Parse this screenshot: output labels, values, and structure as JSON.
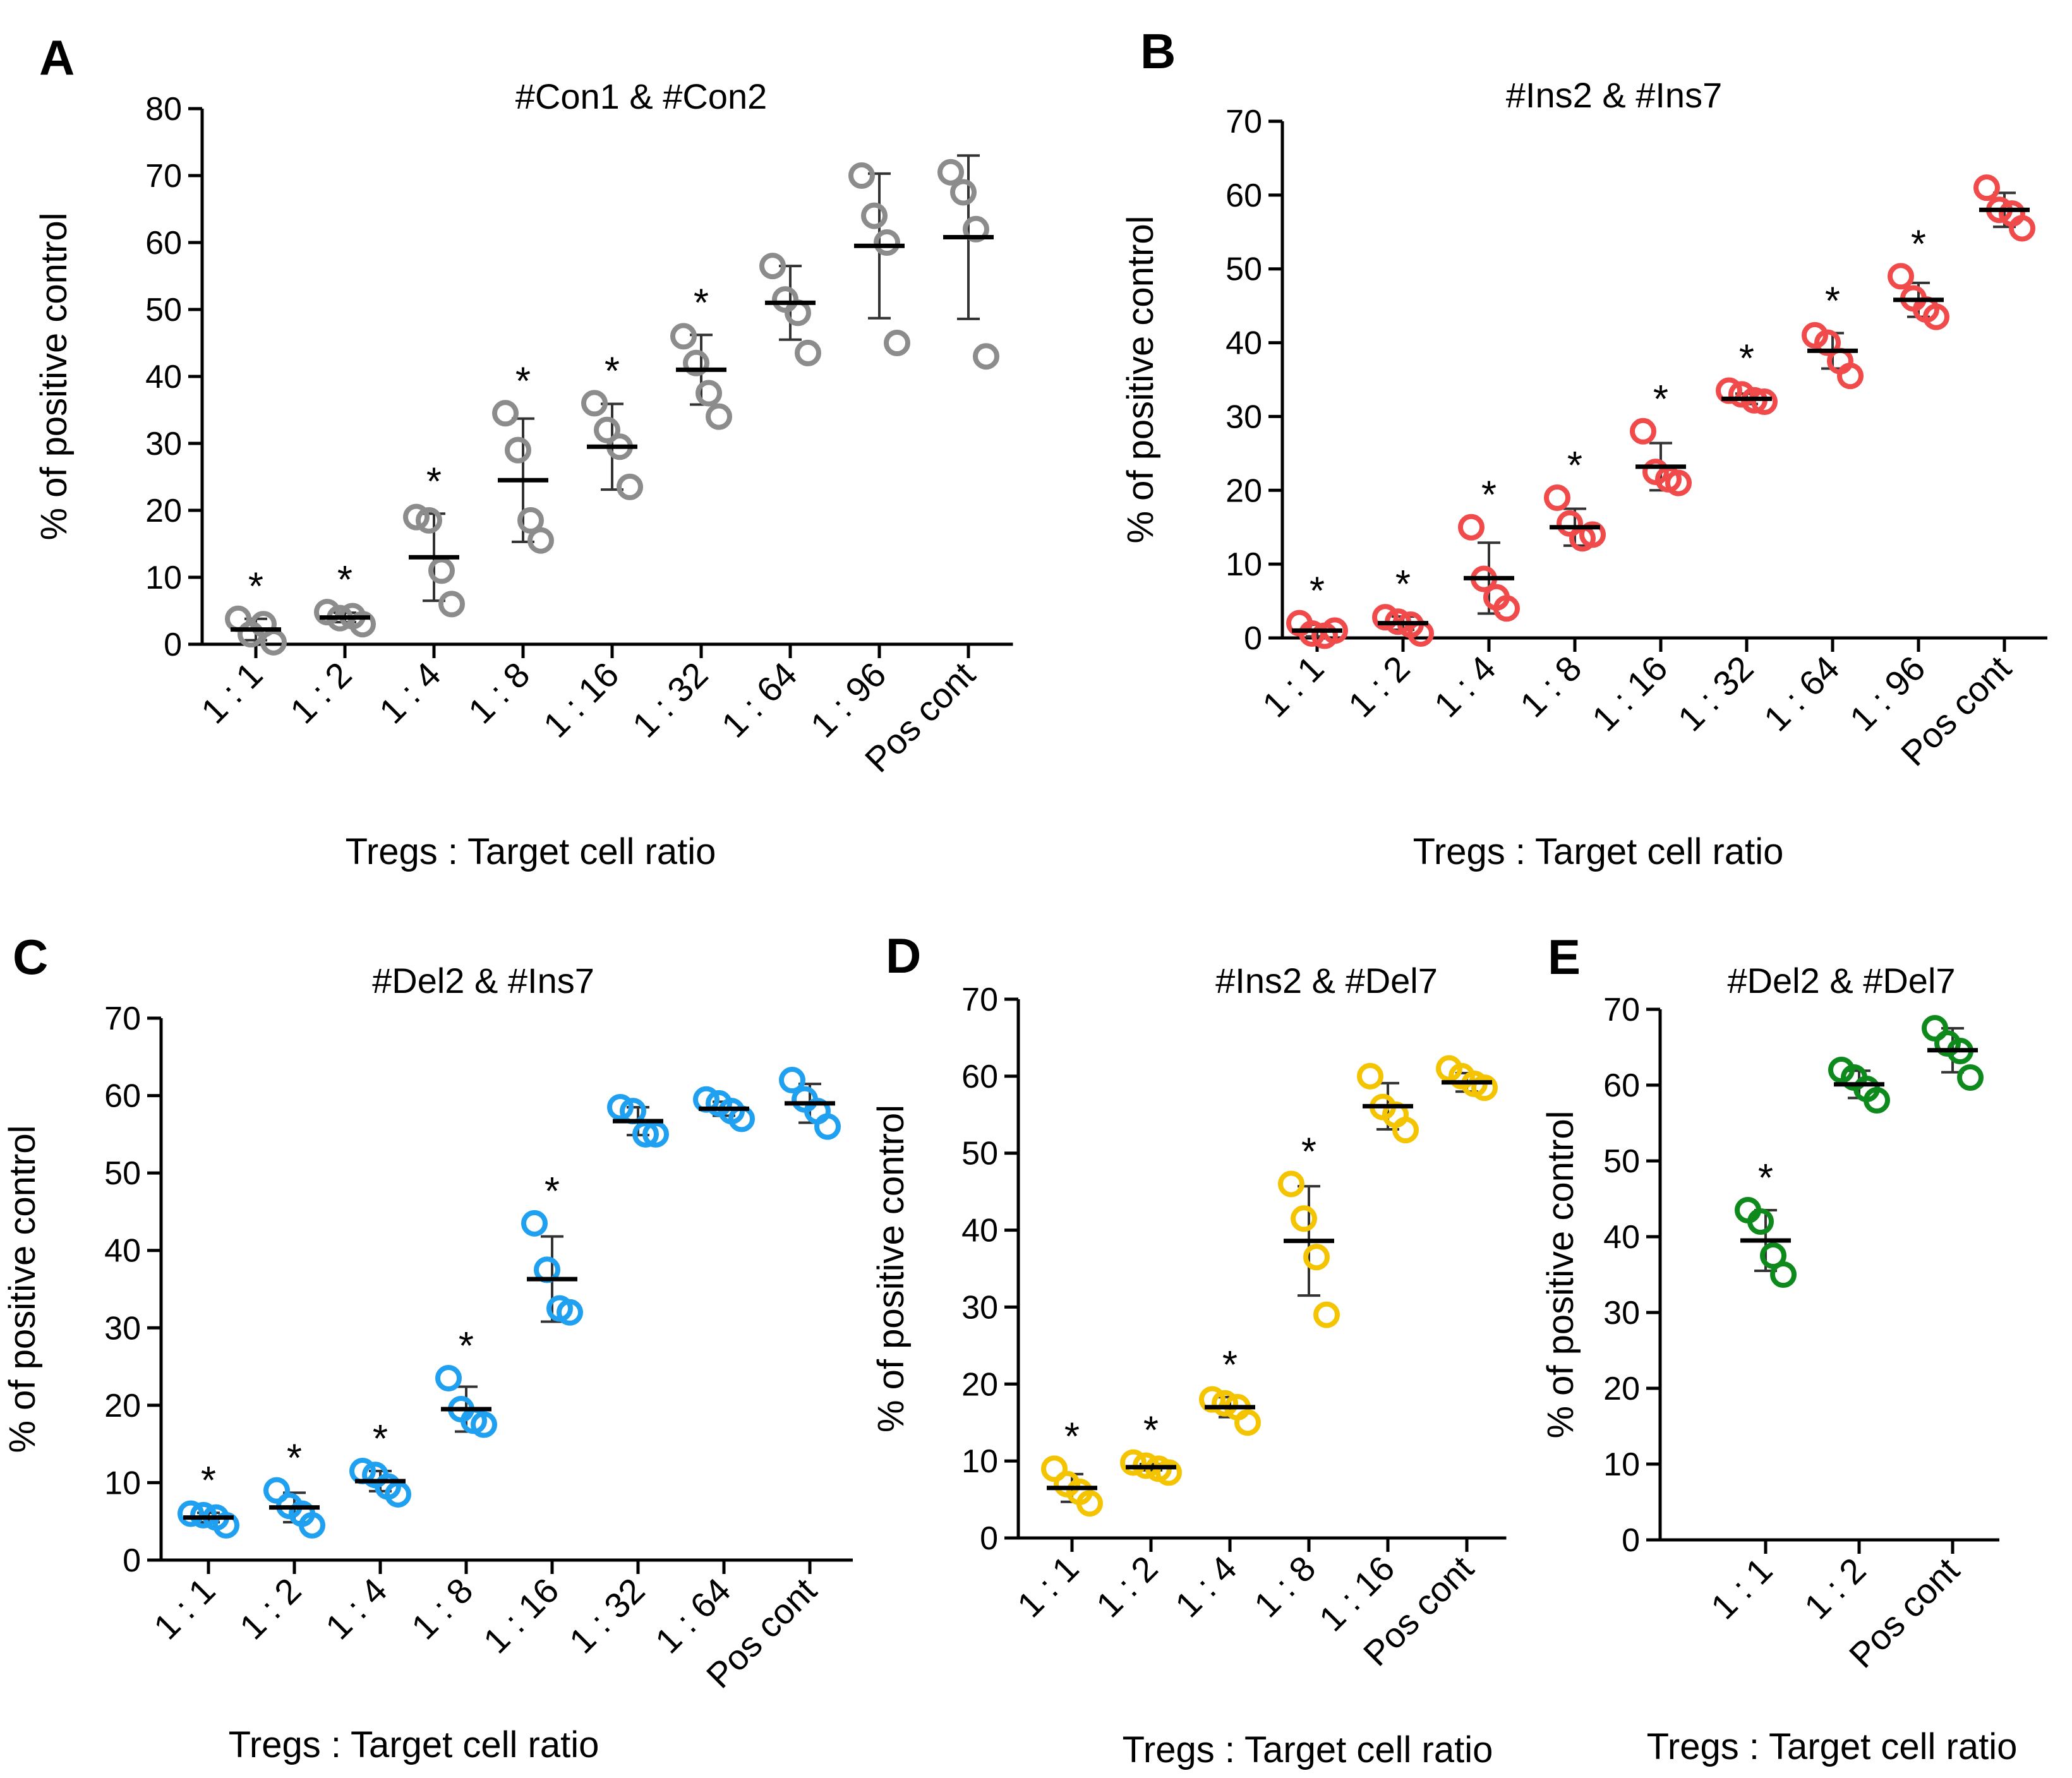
{
  "chart_data": [
    {
      "panel": "A",
      "type": "scatter",
      "title": "#Con1 & #Con2",
      "xlabel": "Tregs : Target cell ratio",
      "ylabel": "% of positive control",
      "ylim": [
        0,
        80
      ],
      "yticks": [
        0,
        10,
        20,
        30,
        40,
        50,
        60,
        70,
        80
      ],
      "color": "#8c8c8c",
      "categories": [
        "1 : 1",
        "1 : 2",
        "1 : 4",
        "1 : 8",
        "1 : 16",
        "1 : 32",
        "1 : 64",
        "1 : 96",
        "Pos cont"
      ],
      "points": [
        [
          3.8,
          1.5,
          3.0,
          0.3
        ],
        [
          4.8,
          3.9,
          4.2,
          3.0
        ],
        [
          19.0,
          18.5,
          11.0,
          6.0
        ],
        [
          34.5,
          29.0,
          18.5,
          15.5
        ],
        [
          36.0,
          32.0,
          29.5,
          23.5
        ],
        [
          46.0,
          42.0,
          37.5,
          34.0
        ],
        [
          56.5,
          51.5,
          49.5,
          43.5
        ],
        [
          70.0,
          64.0,
          60.0,
          45.0
        ],
        [
          70.5,
          67.5,
          62.0,
          43.0
        ]
      ],
      "mean": [
        2.2,
        4.0,
        13.0,
        24.5,
        29.5,
        41.0,
        51.0,
        59.5,
        60.8
      ],
      "sd": [
        1.6,
        0.7,
        6.5,
        9.2,
        6.4,
        5.2,
        5.5,
        10.8,
        12.2
      ],
      "significant": [
        true,
        true,
        true,
        true,
        true,
        true,
        false,
        false,
        false
      ],
      "significance_marker": "*"
    },
    {
      "panel": "B",
      "type": "scatter",
      "title": "#Ins2 & #Ins7",
      "xlabel": "Tregs : Target cell ratio",
      "ylabel": "% of positive control",
      "ylim": [
        0,
        70
      ],
      "yticks": [
        0,
        10,
        20,
        30,
        40,
        50,
        60,
        70
      ],
      "color": "#f04a4a",
      "categories": [
        "1 : 1",
        "1 : 2",
        "1 : 4",
        "1 : 8",
        "1 : 16",
        "1 : 32",
        "1 : 64",
        "1 : 96",
        "Pos cont"
      ],
      "points": [
        [
          2.0,
          0.6,
          0.3,
          1.0
        ],
        [
          2.8,
          2.2,
          1.8,
          0.6
        ],
        [
          15.0,
          8.0,
          5.5,
          4.0
        ],
        [
          19.0,
          15.5,
          13.5,
          14.0
        ],
        [
          28.0,
          22.5,
          21.5,
          21.0
        ],
        [
          33.5,
          33.0,
          32.2,
          32.0
        ],
        [
          41.0,
          40.0,
          37.5,
          35.5
        ],
        [
          49.0,
          46.0,
          44.5,
          43.5
        ],
        [
          61.0,
          58.0,
          57.5,
          55.5
        ]
      ],
      "mean": [
        1.0,
        2.0,
        8.1,
        15.0,
        23.2,
        32.4,
        38.9,
        45.8,
        58.0
      ],
      "sd": [
        0.8,
        0.9,
        4.8,
        2.5,
        3.2,
        0.7,
        2.4,
        2.3,
        2.3
      ],
      "significant": [
        true,
        true,
        true,
        true,
        true,
        true,
        true,
        true,
        false
      ],
      "significance_marker": "*"
    },
    {
      "panel": "C",
      "type": "scatter",
      "title": "#Del2 & #Ins7",
      "xlabel": "Tregs : Target cell ratio",
      "ylabel": "% of positive control",
      "ylim": [
        0,
        70
      ],
      "yticks": [
        0,
        10,
        20,
        30,
        40,
        50,
        60,
        70
      ],
      "color": "#1fa0f0",
      "categories": [
        "1 : 1",
        "1 : 2",
        "1 : 4",
        "1 : 8",
        "1 : 16",
        "1 : 32",
        "1 : 64",
        "Pos cont"
      ],
      "points": [
        [
          6.0,
          5.8,
          5.5,
          4.5
        ],
        [
          9.0,
          7.0,
          6.0,
          4.5
        ],
        [
          11.5,
          11.0,
          9.5,
          8.5
        ],
        [
          23.5,
          19.5,
          18.0,
          17.5
        ],
        [
          43.5,
          37.5,
          32.5,
          32.0
        ],
        [
          58.5,
          58.0,
          55.0,
          55.0
        ],
        [
          59.5,
          59.0,
          58.0,
          57.0
        ],
        [
          62.0,
          59.5,
          58.0,
          56.0
        ]
      ],
      "mean": [
        5.5,
        6.8,
        10.2,
        19.5,
        36.3,
        56.7,
        58.3,
        59.0
      ],
      "sd": [
        0.6,
        1.9,
        1.3,
        2.9,
        5.5,
        1.8,
        0.9,
        2.5
      ],
      "significant": [
        true,
        true,
        true,
        true,
        true,
        false,
        false,
        false
      ],
      "significance_marker": "*"
    },
    {
      "panel": "D",
      "type": "scatter",
      "title": "#Ins2 & #Del7",
      "xlabel": "Tregs : Target cell ratio",
      "ylabel": "% of positive control",
      "ylim": [
        0,
        70
      ],
      "yticks": [
        0,
        10,
        20,
        30,
        40,
        50,
        60,
        70
      ],
      "color": "#f5c400",
      "categories": [
        "1 : 1",
        "1 : 2",
        "1 : 4",
        "1 : 8",
        "1 : 16",
        "Pos cont"
      ],
      "points": [
        [
          9.0,
          7.0,
          6.0,
          4.5
        ],
        [
          9.8,
          9.4,
          9.0,
          8.5
        ],
        [
          18.0,
          17.5,
          17.0,
          15.0
        ],
        [
          46.0,
          41.5,
          36.5,
          29.0
        ],
        [
          60.0,
          56.0,
          55.0,
          53.0
        ],
        [
          61.0,
          60.0,
          59.0,
          58.5
        ]
      ],
      "mean": [
        6.5,
        9.2,
        17.0,
        38.6,
        56.1,
        59.2
      ],
      "sd": [
        1.8,
        0.4,
        1.3,
        7.1,
        3.0,
        1.2
      ],
      "significant": [
        true,
        true,
        true,
        true,
        false,
        false
      ],
      "significance_marker": "*"
    },
    {
      "panel": "E",
      "type": "scatter",
      "title": "#Del2 & #Del7",
      "xlabel": "Tregs : Target cell ratio",
      "ylabel": "% of positive control",
      "ylim": [
        0,
        70
      ],
      "yticks": [
        0,
        10,
        20,
        30,
        40,
        50,
        60,
        70
      ],
      "color": "#0e8a1c",
      "categories": [
        "1 : 1",
        "1 : 2",
        "Pos cont"
      ],
      "points": [
        [
          43.5,
          42.0,
          37.5,
          35.0
        ],
        [
          62.0,
          61.0,
          59.5,
          58.0
        ],
        [
          67.5,
          65.5,
          64.5,
          61.0
        ]
      ],
      "mean": [
        39.5,
        60.1,
        64.6
      ],
      "sd": [
        4.0,
        1.8,
        2.9
      ],
      "significant": [
        true,
        false,
        false
      ],
      "significance_marker": "*"
    }
  ]
}
